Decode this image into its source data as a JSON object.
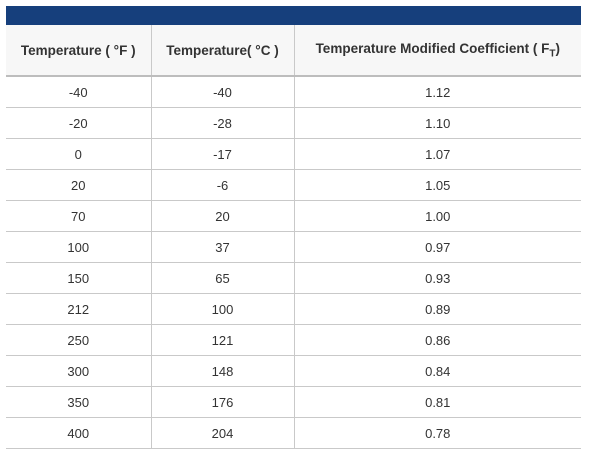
{
  "table": {
    "headers": [
      "Temperature ( °F )",
      "Temperature( °C )",
      {
        "main": "Temperature Modified Coefficient ( F",
        "subscript": "T",
        "close": ")"
      }
    ],
    "rows": [
      [
        "-40",
        "-40",
        "1.12"
      ],
      [
        "-20",
        "-28",
        "1.10"
      ],
      [
        "0",
        "-17",
        "1.07"
      ],
      [
        "20",
        "-6",
        "1.05"
      ],
      [
        "70",
        "20",
        "1.00"
      ],
      [
        "100",
        "37",
        "0.97"
      ],
      [
        "150",
        "65",
        "0.93"
      ],
      [
        "212",
        "100",
        "0.89"
      ],
      [
        "250",
        "121",
        "0.86"
      ],
      [
        "300",
        "148",
        "0.84"
      ],
      [
        "350",
        "176",
        "0.81"
      ],
      [
        "400",
        "204",
        "0.78"
      ]
    ]
  }
}
